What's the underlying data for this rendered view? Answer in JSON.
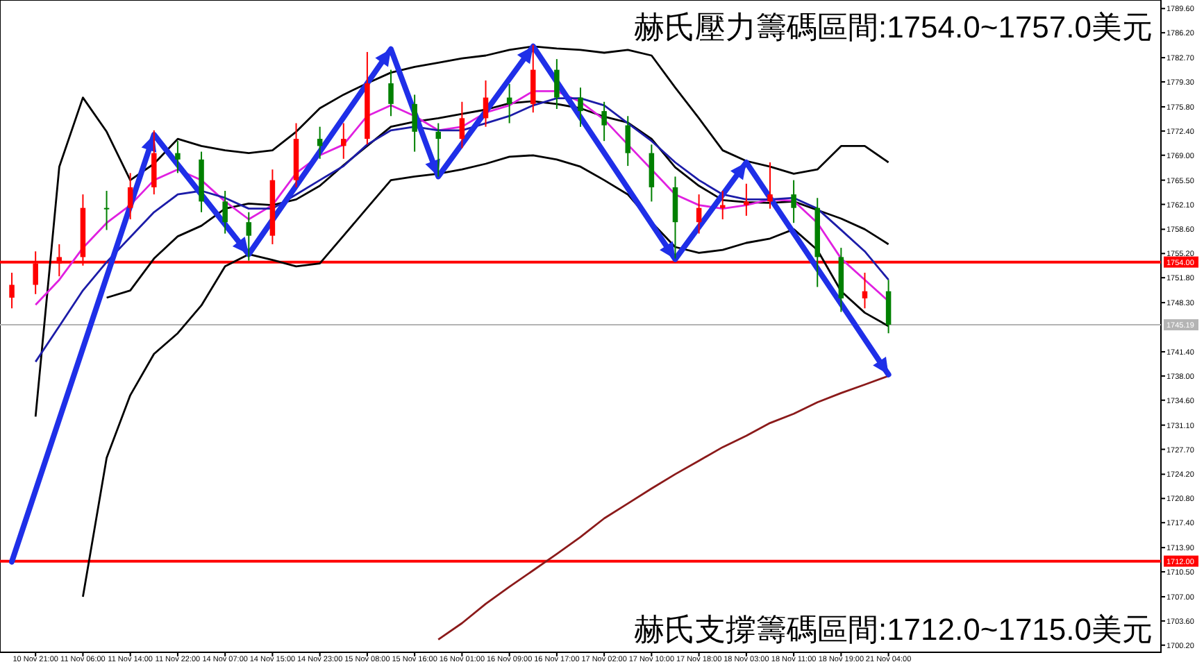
{
  "chart_data": {
    "type": "candlestick",
    "categories": [
      null,
      "10 Nov 21:00",
      null,
      "11 Nov 06:00",
      null,
      "11 Nov 14:00",
      null,
      "11 Nov 22:00",
      null,
      "14 Nov 07:00",
      null,
      "14 Nov 15:00",
      null,
      "14 Nov 23:00",
      null,
      "15 Nov 08:00",
      null,
      "15 Nov 16:00",
      null,
      "16 Nov 01:00",
      null,
      "16 Nov 09:00",
      null,
      "16 Nov 17:00",
      null,
      "17 Nov 02:00",
      null,
      "17 Nov 10:00",
      null,
      "17 Nov 18:00",
      null,
      "18 Nov 03:00",
      null,
      "18 Nov 11:00",
      null,
      "18 Nov 19:00",
      null,
      "21 Nov 04:00",
      null,
      null,
      null,
      null,
      null,
      null,
      null,
      null,
      null,
      null,
      null
    ],
    "ohlc": [
      [
        1749.0,
        1752.5,
        1747.5,
        1750.8
      ],
      [
        1750.8,
        1755.5,
        1749.5,
        1753.8
      ],
      [
        1753.8,
        1756.5,
        1752.0,
        1754.7
      ],
      [
        1754.7,
        1763.5,
        1753.5,
        1761.6
      ],
      [
        1761.6,
        1764.0,
        1758.5,
        1761.6
      ],
      [
        1761.6,
        1766.5,
        1760.0,
        1764.5
      ],
      [
        1764.5,
        1772.5,
        1763.5,
        1769.3
      ],
      [
        1769.3,
        1771.0,
        1766.5,
        1768.4
      ],
      [
        1768.4,
        1769.5,
        1761.0,
        1762.5
      ],
      [
        1762.5,
        1764.0,
        1758.0,
        1759.6
      ],
      [
        1759.6,
        1761.0,
        1754.2,
        1757.7
      ],
      [
        1757.7,
        1767.0,
        1756.5,
        1765.5
      ],
      [
        1765.5,
        1773.5,
        1764.5,
        1771.3
      ],
      [
        1771.3,
        1773.0,
        1768.5,
        1770.3
      ],
      [
        1770.3,
        1773.5,
        1768.5,
        1771.3
      ],
      [
        1771.3,
        1783.5,
        1770.5,
        1779.1
      ],
      [
        1779.1,
        1781.0,
        1774.5,
        1776.2
      ],
      [
        1776.2,
        1777.5,
        1769.5,
        1772.3
      ],
      [
        1772.3,
        1773.5,
        1766.0,
        1771.3
      ],
      [
        1771.3,
        1776.5,
        1770.0,
        1774.2
      ],
      [
        1774.2,
        1779.5,
        1773.0,
        1777.1
      ],
      [
        1777.1,
        1779.0,
        1773.5,
        1776.2
      ],
      [
        1776.2,
        1784.5,
        1775.0,
        1781.0
      ],
      [
        1781.0,
        1782.5,
        1775.5,
        1777.1
      ],
      [
        1777.1,
        1778.5,
        1773.0,
        1775.2
      ],
      [
        1775.2,
        1776.5,
        1771.0,
        1773.2
      ],
      [
        1773.2,
        1774.5,
        1767.5,
        1769.3
      ],
      [
        1769.3,
        1770.5,
        1762.5,
        1764.5
      ],
      [
        1764.5,
        1766.0,
        1754.5,
        1759.6
      ],
      [
        1759.6,
        1763.5,
        1758.0,
        1761.6
      ],
      [
        1761.6,
        1764.0,
        1760.0,
        1762.0
      ],
      [
        1762.0,
        1765.0,
        1760.5,
        1762.5
      ],
      [
        1762.5,
        1768.0,
        1761.5,
        1763.5
      ],
      [
        1763.5,
        1765.5,
        1759.5,
        1761.6
      ],
      [
        1761.6,
        1763.0,
        1750.5,
        1754.7
      ],
      [
        1754.7,
        1756.0,
        1747.0,
        1748.9
      ],
      [
        1748.9,
        1752.5,
        1747.5,
        1749.9
      ],
      [
        1749.9,
        1751.5,
        1744.0,
        1745.2
      ],
      null,
      null,
      null,
      null,
      null,
      null,
      null,
      null,
      null,
      null,
      null
    ],
    "colors": [
      "#ff0000",
      "#ff0000",
      "#ff0000",
      "#ff0000",
      "#008000",
      "#ff0000",
      "#ff0000",
      "#008000",
      "#008000",
      "#008000",
      "#008000",
      "#ff0000",
      "#ff0000",
      "#008000",
      "#ff0000",
      "#ff0000",
      "#008000",
      "#008000",
      "#008000",
      "#ff0000",
      "#ff0000",
      "#008000",
      "#ff0000",
      "#008000",
      "#008000",
      "#008000",
      "#008000",
      "#008000",
      "#008000",
      "#ff0000",
      "#ff0000",
      "#ff0000",
      "#ff0000",
      "#008000",
      "#008000",
      "#008000",
      "#ff0000",
      "#008000",
      null,
      null,
      null,
      null,
      null,
      null,
      null,
      null,
      null,
      null,
      null
    ],
    "series": [
      {
        "type": "line",
        "color": "#000000",
        "values": [
          null,
          1732.3,
          1767.4,
          1777.1,
          1772.3,
          1765.5,
          1767.8,
          1771.3,
          1770.3,
          1769.7,
          1769.3,
          1769.7,
          1772.3,
          1775.6,
          1777.5,
          1779.1,
          1780.6,
          1781.4,
          1782.0,
          1782.6,
          1783.0,
          1783.8,
          1784.3,
          1784.0,
          1783.8,
          1783.4,
          1783.8,
          1783.0,
          1778.5,
          1774.2,
          1769.7,
          1768.2,
          1767.4,
          1766.4,
          1767.0,
          1770.3,
          1770.3,
          1768.0,
          null,
          null,
          null,
          null,
          null,
          null,
          null,
          null,
          null,
          null,
          null
        ]
      },
      {
        "type": "line",
        "color": "#000000",
        "values": [
          null,
          null,
          null,
          null,
          1749.0,
          1750.0,
          1754.5,
          1757.6,
          1759.1,
          1761.5,
          1762.2,
          1762.0,
          1762.8,
          1764.7,
          1767.6,
          1770.3,
          1773.0,
          1773.7,
          1774.2,
          1774.8,
          1775.4,
          1776.3,
          1776.6,
          1776.2,
          1775.6,
          1774.4,
          1773.6,
          1771.3,
          1767.3,
          1764.7,
          1762.7,
          1762.4,
          1762.3,
          1762.5,
          1761.3,
          1760.1,
          1758.6,
          1756.5,
          null,
          null,
          null,
          null,
          null,
          null,
          null,
          null,
          null,
          null,
          null
        ]
      },
      {
        "type": "line",
        "color": "#000000",
        "values": [
          null,
          null,
          null,
          1707.0,
          1726.5,
          1735.3,
          1741.1,
          1744.0,
          1747.9,
          1753.4,
          1755.1,
          1754.3,
          1753.4,
          1753.8,
          1757.7,
          1761.6,
          1765.5,
          1766.0,
          1766.4,
          1767.0,
          1767.8,
          1768.8,
          1769.0,
          1768.4,
          1767.4,
          1765.5,
          1763.5,
          1759.6,
          1756.1,
          1755.3,
          1755.7,
          1756.7,
          1757.3,
          1758.6,
          1755.7,
          1749.9,
          1746.9,
          1745.0,
          null,
          null,
          null,
          null,
          null,
          null,
          null,
          null,
          null,
          null,
          null
        ]
      },
      {
        "type": "line",
        "color": "#e020e0",
        "values": [
          null,
          1748.0,
          1751.5,
          1756.0,
          1759.5,
          1762.0,
          1765.5,
          1767.0,
          1765.5,
          1762.5,
          1760.0,
          1762.0,
          1766.5,
          1769.0,
          1770.5,
          1774.5,
          1776.0,
          1774.5,
          1772.5,
          1773.0,
          1775.0,
          1776.0,
          1778.0,
          1778.0,
          1776.5,
          1774.0,
          1770.5,
          1767.0,
          1763.5,
          1762.0,
          1761.5,
          1762.0,
          1762.8,
          1762.6,
          1759.5,
          1754.5,
          1751.5,
          1748.5,
          null,
          null,
          null,
          null,
          null,
          null,
          null,
          null,
          null,
          null,
          null
        ]
      },
      {
        "type": "line",
        "color": "#1c1ca8",
        "values": [
          null,
          1740.0,
          1745.0,
          1750.0,
          1754.0,
          1757.5,
          1761.0,
          1763.5,
          1764.0,
          1763.0,
          1761.5,
          1761.5,
          1763.5,
          1765.5,
          1767.5,
          1770.5,
          1772.5,
          1773.0,
          1772.5,
          1772.5,
          1773.5,
          1774.5,
          1776.0,
          1777.0,
          1777.0,
          1776.0,
          1773.5,
          1771.0,
          1768.0,
          1765.5,
          1763.5,
          1762.8,
          1762.8,
          1763.0,
          1761.5,
          1758.5,
          1755.5,
          1751.5,
          null,
          null,
          null,
          null,
          null,
          null,
          null,
          null,
          null,
          null,
          null
        ]
      },
      {
        "type": "line",
        "color": "#8b1a1a",
        "values": [
          null,
          null,
          null,
          null,
          null,
          null,
          null,
          null,
          null,
          null,
          null,
          null,
          null,
          null,
          null,
          null,
          null,
          null,
          1701.0,
          1703.3,
          1706.0,
          1708.4,
          1710.7,
          1713.0,
          1715.4,
          1718.0,
          1720.1,
          1722.2,
          1724.2,
          1726.1,
          1728.0,
          1729.6,
          1731.4,
          1732.7,
          1734.3,
          1735.6,
          1736.8,
          1738.0,
          null,
          null,
          null,
          null,
          null,
          null,
          null,
          null,
          null,
          null,
          null
        ]
      },
      {
        "type": "line",
        "color": "#1f2fe8",
        "values": [
          1711.9,
          null,
          null,
          null,
          null,
          null,
          1771.9,
          null,
          null,
          null,
          1755.1,
          null,
          null,
          null,
          null,
          null,
          1783.9,
          null,
          1766.0,
          null,
          null,
          null,
          1784.3,
          null,
          null,
          null,
          null,
          null,
          1754.4,
          null,
          null,
          1768.0,
          null,
          null,
          null,
          null,
          null,
          1738.2,
          null,
          null,
          null,
          null,
          null,
          null,
          null,
          null,
          null,
          null,
          null
        ]
      }
    ],
    "ylim": [
      1699.2,
      1790.8
    ],
    "yticks": [
      {
        "value": 1789.6,
        "label": "1789.60"
      },
      {
        "value": 1786.2,
        "label": "1786.20"
      },
      {
        "value": 1782.7,
        "label": "1782.70"
      },
      {
        "value": 1779.3,
        "label": "1779.30"
      },
      {
        "value": 1775.8,
        "label": "1775.80"
      },
      {
        "value": 1772.4,
        "label": "1772.40"
      },
      {
        "value": 1769.0,
        "label": "1769.00"
      },
      {
        "value": 1765.5,
        "label": "1765.50"
      },
      {
        "value": 1762.1,
        "label": "1762.10"
      },
      {
        "value": 1758.6,
        "label": "1758.60"
      },
      {
        "value": 1755.2,
        "label": "1755.20"
      },
      {
        "value": 1751.8,
        "label": "1751.80"
      },
      {
        "value": 1748.3,
        "label": "1748.30"
      },
      {
        "value": 1741.4,
        "label": "1741.40"
      },
      {
        "value": 1738.0,
        "label": "1738.00"
      },
      {
        "value": 1734.6,
        "label": "1734.60"
      },
      {
        "value": 1731.1,
        "label": "1731.10"
      },
      {
        "value": 1727.7,
        "label": "1727.70"
      },
      {
        "value": 1724.2,
        "label": "1724.20"
      },
      {
        "value": 1720.8,
        "label": "1720.80"
      },
      {
        "value": 1717.4,
        "label": "1717.40"
      },
      {
        "value": 1713.9,
        "label": "1713.90"
      },
      {
        "value": 1710.5,
        "label": "1710.50"
      },
      {
        "value": 1707.0,
        "label": "1707.00"
      },
      {
        "value": 1703.6,
        "label": "1703.60"
      },
      {
        "value": 1700.2,
        "label": "1700.20"
      }
    ],
    "ref_lines": [
      {
        "axis": "y",
        "value": 1754.0,
        "label": "1754.00",
        "color": "#ff0000"
      },
      {
        "axis": "y",
        "value": 1712.0,
        "label": "1712.00",
        "color": "#ff0000"
      },
      {
        "axis": "y",
        "value": 1745.19,
        "label": "1745.19",
        "color": "#b4b4b4"
      }
    ],
    "annotations": [
      "赫氏壓力籌碼區間:1754.0~1757.0美元",
      "赫氏支撐籌碼區間:1712.0~1715.0美元"
    ]
  }
}
